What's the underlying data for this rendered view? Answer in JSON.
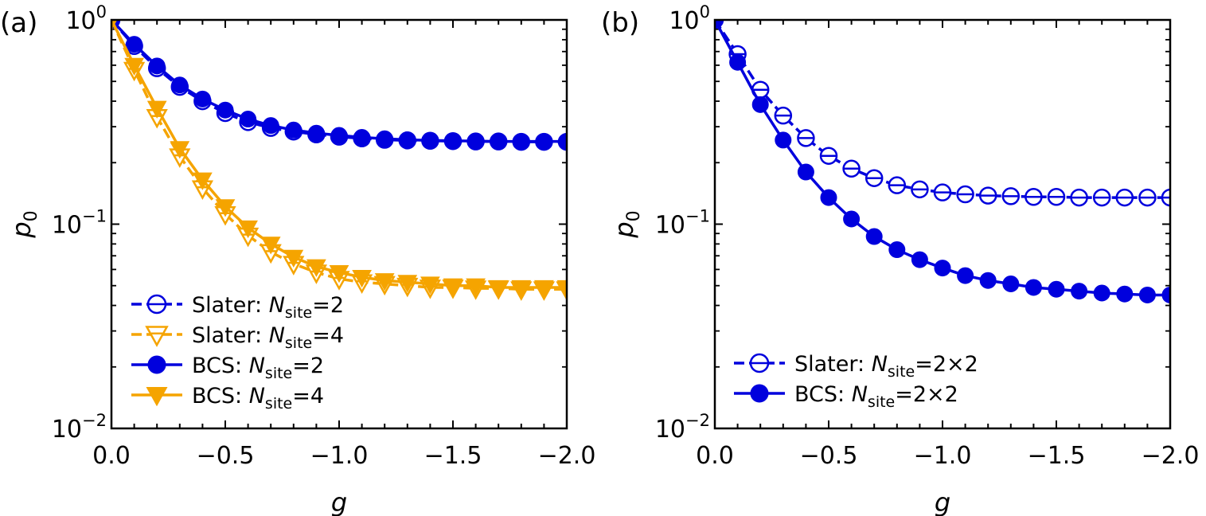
{
  "chart_data": [
    {
      "type": "line",
      "panel_label": "(a)",
      "xlabel": "g",
      "ylabel": "p",
      "ylabel_sub": "0",
      "yscale": "log",
      "xlim": [
        0.0,
        -2.0
      ],
      "ylim": [
        0.01,
        1.0
      ],
      "x_ticks": [
        "0.0",
        "−0.5",
        "−1.0",
        "−1.5",
        "−2.0"
      ],
      "y_ticks": [
        {
          "base": "10",
          "exp": "−2"
        },
        {
          "base": "10",
          "exp": "−1"
        },
        {
          "base": "10",
          "exp": "0"
        }
      ],
      "grid": false,
      "legend_position": "lower-left",
      "x": [
        0.0,
        -0.1,
        -0.2,
        -0.3,
        -0.4,
        -0.5,
        -0.6,
        -0.7,
        -0.8,
        -0.9,
        -1.0,
        -1.1,
        -1.2,
        -1.3,
        -1.4,
        -1.5,
        -1.6,
        -1.7,
        -1.8,
        -1.9,
        -2.0
      ],
      "series": [
        {
          "name": "Slater: N",
          "name_sub": "site",
          "name_tail": "=2",
          "color": "#0000dd",
          "linestyle": "dashed",
          "marker": "circle-open",
          "values": [
            1.0,
            0.745,
            0.58,
            0.47,
            0.4,
            0.35,
            0.316,
            0.296,
            0.284,
            0.275,
            0.268,
            0.263,
            0.259,
            0.257,
            0.256,
            0.255,
            0.254,
            0.254,
            0.253,
            0.253,
            0.253
          ]
        },
        {
          "name": "Slater: N",
          "name_sub": "site",
          "name_tail": "=4",
          "color": "#f5a400",
          "linestyle": "dashed",
          "marker": "triangle-down-open",
          "values": [
            1.0,
            0.57,
            0.335,
            0.215,
            0.15,
            0.112,
            0.088,
            0.073,
            0.064,
            0.058,
            0.054,
            0.052,
            0.051,
            0.05,
            0.049,
            0.049,
            0.0485,
            0.0485,
            0.048,
            0.048,
            0.048
          ]
        },
        {
          "name": "BCS: N",
          "name_sub": "site",
          "name_tail": "=2",
          "color": "#0000dd",
          "linestyle": "solid",
          "marker": "circle-filled",
          "values": [
            1.0,
            0.76,
            0.595,
            0.48,
            0.41,
            0.362,
            0.327,
            0.304,
            0.289,
            0.279,
            0.272,
            0.266,
            0.262,
            0.259,
            0.257,
            0.256,
            0.255,
            0.254,
            0.254,
            0.254,
            0.254
          ]
        },
        {
          "name": "BCS: N",
          "name_sub": "site",
          "name_tail": "=4",
          "color": "#f5a400",
          "linestyle": "solid",
          "marker": "triangle-down-filled",
          "values": [
            1.0,
            0.6,
            0.37,
            0.235,
            0.165,
            0.122,
            0.096,
            0.08,
            0.069,
            0.062,
            0.058,
            0.055,
            0.053,
            0.052,
            0.051,
            0.05,
            0.05,
            0.049,
            0.049,
            0.049,
            0.049
          ]
        }
      ]
    },
    {
      "type": "line",
      "panel_label": "(b)",
      "xlabel": "g",
      "ylabel": "p",
      "ylabel_sub": "0",
      "yscale": "log",
      "xlim": [
        0.0,
        -2.0
      ],
      "ylim": [
        0.01,
        1.0
      ],
      "x_ticks": [
        "0.0",
        "−0.5",
        "−1.0",
        "−1.5",
        "−2.0"
      ],
      "y_ticks": [
        {
          "base": "10",
          "exp": "−2"
        },
        {
          "base": "10",
          "exp": "−1"
        },
        {
          "base": "10",
          "exp": "0"
        }
      ],
      "grid": false,
      "legend_position": "lower-left",
      "x": [
        0.0,
        -0.1,
        -0.2,
        -0.3,
        -0.4,
        -0.5,
        -0.6,
        -0.7,
        -0.8,
        -0.9,
        -1.0,
        -1.1,
        -1.2,
        -1.3,
        -1.4,
        -1.5,
        -1.6,
        -1.7,
        -1.8,
        -1.9,
        -2.0
      ],
      "series": [
        {
          "name": "Slater: N",
          "name_sub": "site",
          "name_tail": "=2×2",
          "color": "#0000dd",
          "linestyle": "dashed",
          "marker": "circle-open",
          "values": [
            1.0,
            0.68,
            0.455,
            0.34,
            0.264,
            0.216,
            0.187,
            0.168,
            0.155,
            0.148,
            0.143,
            0.14,
            0.138,
            0.137,
            0.136,
            0.136,
            0.135,
            0.135,
            0.135,
            0.135,
            0.135
          ]
        },
        {
          "name": "BCS: N",
          "name_sub": "site",
          "name_tail": "=2×2",
          "color": "#0000dd",
          "linestyle": "solid",
          "marker": "circle-filled",
          "values": [
            1.0,
            0.62,
            0.385,
            0.258,
            0.18,
            0.135,
            0.106,
            0.087,
            0.075,
            0.067,
            0.061,
            0.056,
            0.053,
            0.051,
            0.049,
            0.048,
            0.047,
            0.046,
            0.0455,
            0.045,
            0.045
          ]
        }
      ]
    }
  ]
}
